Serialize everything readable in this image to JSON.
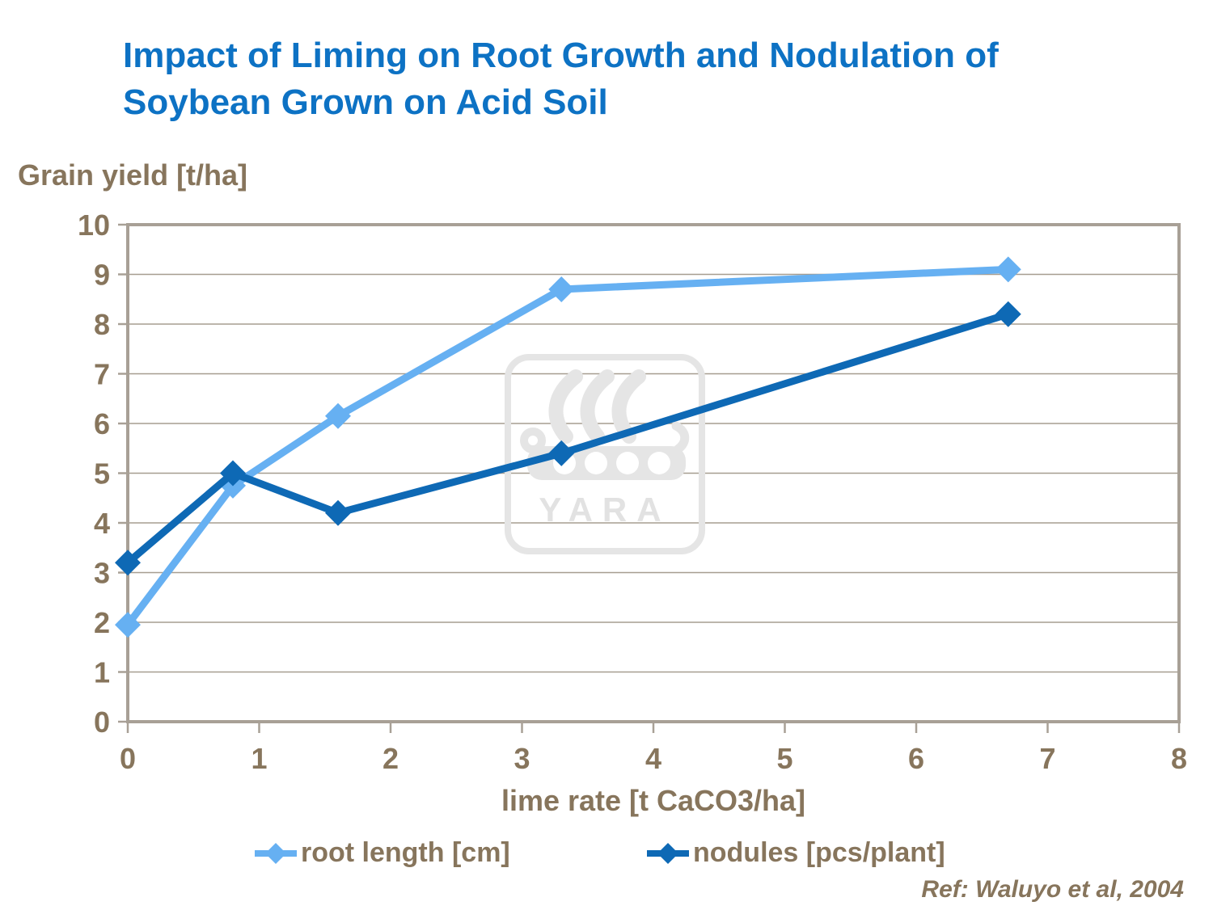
{
  "page": {
    "title": "Impact of Liming on Root Growth and Nodulation of Soybean Grown on Acid Soil",
    "ref": "Ref: Waluyo et al, 2004",
    "watermark": "YARA"
  },
  "colors": {
    "title_blue": "#0D72C4",
    "text_brown": "#87755C",
    "axis_frame": "#A8A096",
    "gridline": "#A69D90",
    "root_series": "#66B0F2",
    "nodules_series": "#0E69B5",
    "watermark_gray": "#E5E5E5"
  },
  "chart_data": {
    "type": "line",
    "title": "Impact of Liming on Root Growth and Nodulation of Soybean Grown on Acid Soil",
    "xlabel": "lime rate [t CaCO3/ha]",
    "ylabel": "Grain yield [t/ha]",
    "x": [
      0,
      0.8,
      1.6,
      3.3,
      6.7
    ],
    "series": [
      {
        "name": "root length [cm]",
        "color_key": "root_series",
        "values": [
          1.95,
          4.75,
          6.15,
          8.7,
          9.1
        ]
      },
      {
        "name": "nodules [pcs/plant]",
        "color_key": "nodules_series",
        "values": [
          3.2,
          5.0,
          4.2,
          5.4,
          8.2
        ]
      }
    ],
    "xlim": [
      0,
      8
    ],
    "ylim": [
      0,
      10
    ],
    "x_ticks": [
      0,
      1,
      2,
      3,
      4,
      5,
      6,
      7,
      8
    ],
    "y_ticks": [
      0,
      1,
      2,
      3,
      4,
      5,
      6,
      7,
      8,
      9,
      10
    ],
    "grid": true,
    "marker": "diamond",
    "legend_position": "bottom"
  }
}
